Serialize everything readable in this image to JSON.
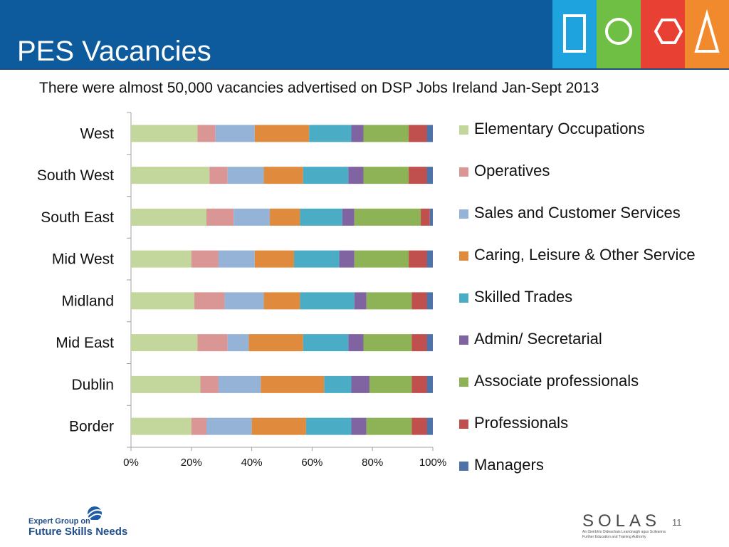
{
  "slide": {
    "title": "PES Vacancies",
    "subtitle": "There were almost 50,000 vacancies advertised on DSP Jobs Ireland  Jan-Sept 2013",
    "page_number": "11",
    "footer_left_line1": "Expert Group on",
    "footer_left_line2": "Future Skills Needs",
    "footer_right_logo": "SOLAS",
    "footer_right_tagline1": "An tSeirbhís Oideachais Leanúnaigh agus Scileanna",
    "footer_right_tagline2": "Further Education and Training Authority",
    "logo_block_colors": [
      "#1ea3de",
      "#6fbf44",
      "#e84033",
      "#f08a2c"
    ]
  },
  "chart_data": {
    "type": "bar",
    "orientation": "horizontal",
    "stacked": "percent",
    "categories": [
      "West",
      "South West",
      "South East",
      "Mid West",
      "Midland",
      "Mid East",
      "Dublin",
      "Border"
    ],
    "x_ticks": [
      "0%",
      "20%",
      "40%",
      "60%",
      "80%",
      "100%"
    ],
    "xlim": [
      0,
      100
    ],
    "legend_position": "right",
    "series": [
      {
        "name": "Elementary Occupations",
        "color": "#c3d69b",
        "values": [
          22,
          26,
          25,
          20,
          21,
          22,
          23,
          20
        ]
      },
      {
        "name": "Operatives",
        "color": "#d99694",
        "values": [
          6,
          6,
          9,
          9,
          10,
          10,
          6,
          5
        ]
      },
      {
        "name": "Sales and Customer Services",
        "color": "#95b3d7",
        "values": [
          13,
          12,
          12,
          12,
          13,
          7,
          14,
          15
        ]
      },
      {
        "name": "Caring, Leisure & Other Service",
        "color": "#e08a3e",
        "values": [
          18,
          13,
          10,
          13,
          12,
          18,
          21,
          18
        ]
      },
      {
        "name": "Skilled Trades",
        "color": "#4bacc6",
        "values": [
          14,
          15,
          14,
          15,
          18,
          15,
          9,
          15
        ]
      },
      {
        "name": "Admin/ Secretarial",
        "color": "#8064a2",
        "values": [
          4,
          5,
          4,
          5,
          4,
          5,
          6,
          5
        ]
      },
      {
        "name": "Associate professionals",
        "color": "#8eb256",
        "values": [
          15,
          15,
          22,
          18,
          15,
          16,
          14,
          15
        ]
      },
      {
        "name": "Professionals",
        "color": "#c0504d",
        "values": [
          6,
          6,
          3,
          6,
          5,
          5,
          5,
          5
        ]
      },
      {
        "name": "Managers",
        "color": "#4f72a8",
        "values": [
          2,
          2,
          1,
          2,
          2,
          2,
          2,
          2
        ]
      }
    ]
  }
}
